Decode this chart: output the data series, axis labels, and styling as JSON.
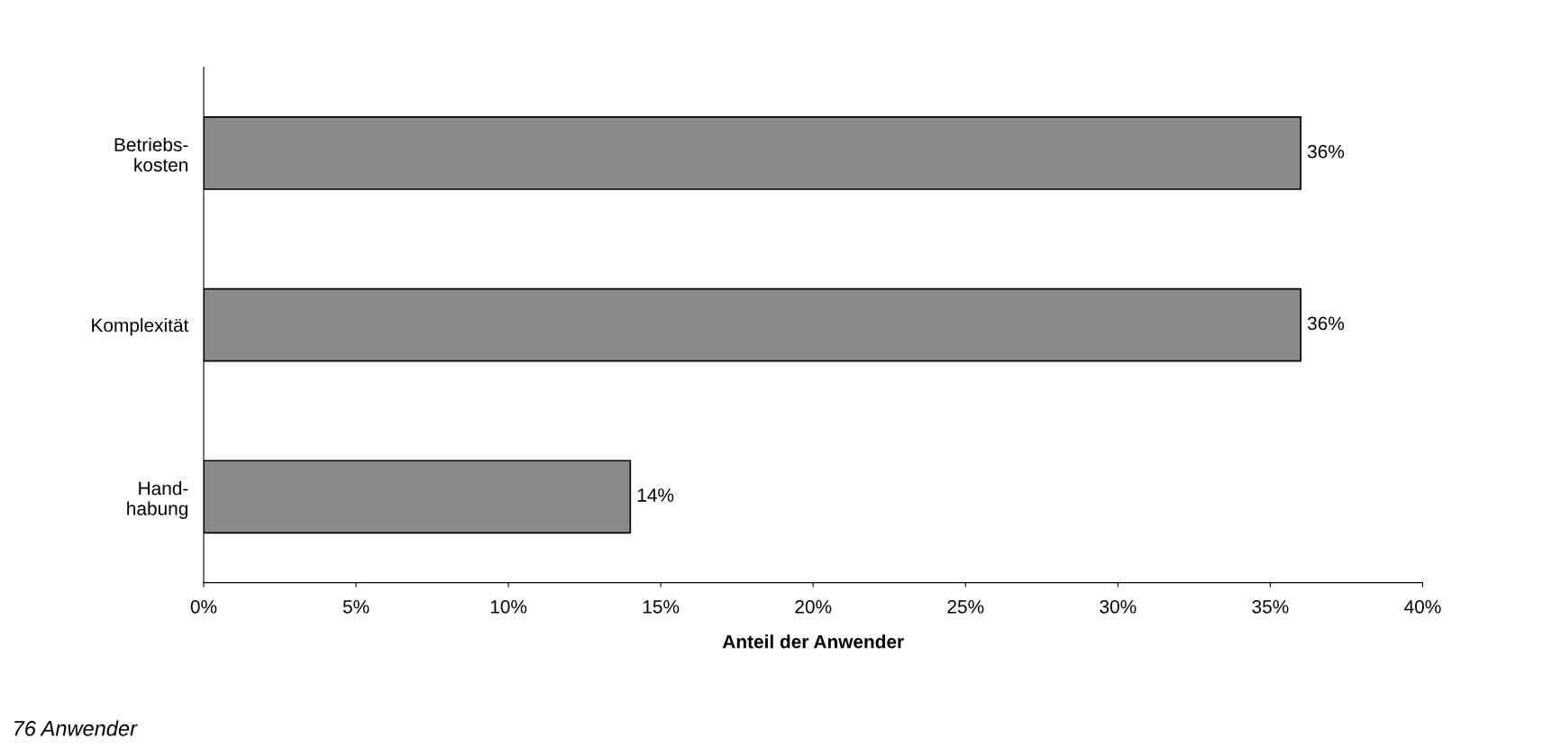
{
  "chart_data": {
    "type": "bar",
    "orientation": "horizontal",
    "xlabel": "Anteil der Anwender",
    "categories": [
      "Betriebs-\nkosten",
      "Komplexität",
      "Hand-\nhabung"
    ],
    "values": [
      36,
      36,
      14
    ],
    "value_labels": [
      "36%",
      "36%",
      "14%"
    ],
    "color": "#8a8a8a",
    "xlim": [
      0,
      40
    ],
    "xticks": [
      {
        "value": 0,
        "label": "0%"
      },
      {
        "value": 5,
        "label": "5%"
      },
      {
        "value": 10,
        "label": "10%"
      },
      {
        "value": 15,
        "label": "15%"
      },
      {
        "value": 20,
        "label": "20%"
      },
      {
        "value": 25,
        "label": "25%"
      },
      {
        "value": 30,
        "label": "30%"
      },
      {
        "value": 35,
        "label": "35%"
      },
      {
        "value": 40,
        "label": "40%"
      }
    ],
    "grid": false,
    "annotations": [
      "76 Anwender"
    ]
  }
}
